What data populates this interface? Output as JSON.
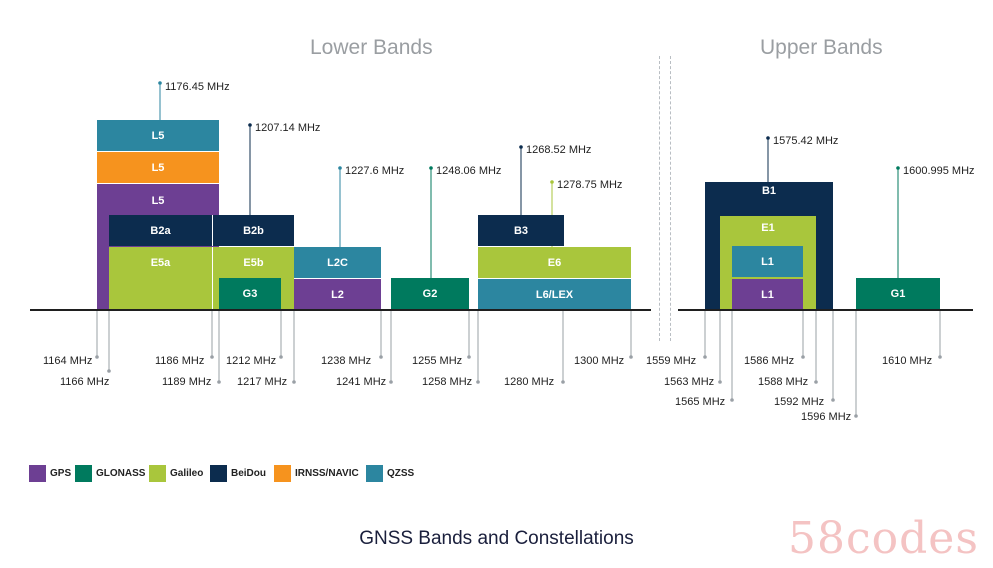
{
  "titles": {
    "lower": "Lower Bands",
    "upper": "Upper Bands"
  },
  "caption": "GNSS Bands and Constellations",
  "watermark": "58codes",
  "colors": {
    "gps": "#6d3f93",
    "glonass": "#007a5e",
    "galileo": "#a9c63c",
    "beidou": "#0c2c4e",
    "irnss": "#f6931e",
    "qzss": "#2c86a0"
  },
  "legend": [
    {
      "label": "GPS",
      "color": "#6d3f93"
    },
    {
      "label": "GLONASS",
      "color": "#007a5e"
    },
    {
      "label": "Galileo",
      "color": "#a9c63c"
    },
    {
      "label": "BeiDou",
      "color": "#0c2c4e"
    },
    {
      "label": "IRNSS/NAVIC",
      "color": "#f6931e"
    },
    {
      "label": "QZSS",
      "color": "#2c86a0"
    }
  ],
  "bands": {
    "l5_qzss": "L5",
    "l5_irnss": "L5",
    "l5_gps": "L5",
    "b2a": "B2a",
    "b2b": "B2b",
    "e5a": "E5a",
    "e5b": "E5b",
    "g3": "G3",
    "l2c": "L2C",
    "l2": "L2",
    "g2": "G2",
    "b3": "B3",
    "e6": "E6",
    "l6lex": "L6/LEX",
    "b1": "B1",
    "e1": "E1",
    "l1_qzss": "L1",
    "l1_gps": "L1",
    "g1": "G1"
  },
  "centers": {
    "c1": "1176.45 MHz",
    "c2": "1207.14 MHz",
    "c3": "1227.6 MHz",
    "c4": "1248.06 MHz",
    "c5": "1268.52 MHz",
    "c6": "1278.75 MHz",
    "c7": "1575.42 MHz",
    "c8": "1600.995 MHz"
  },
  "edges": {
    "e1164": "1164 MHz",
    "e1166": "1166 MHz",
    "e1186": "1186 MHz",
    "e1189": "1189 MHz",
    "e1212": "1212 MHz",
    "e1217": "1217 MHz",
    "e1238": "1238 MHz",
    "e1241": "1241 MHz",
    "e1255": "1255 MHz",
    "e1258": "1258 MHz",
    "e1280": "1280 MHz",
    "e1300": "1300 MHz",
    "e1559": "1559 MHz",
    "e1563": "1563 MHz",
    "e1565": "1565 MHz",
    "e1586": "1586 MHz",
    "e1588": "1588 MHz",
    "e1592": "1592 MHz",
    "e1596": "1596 MHz",
    "e1610": "1610 MHz"
  }
}
